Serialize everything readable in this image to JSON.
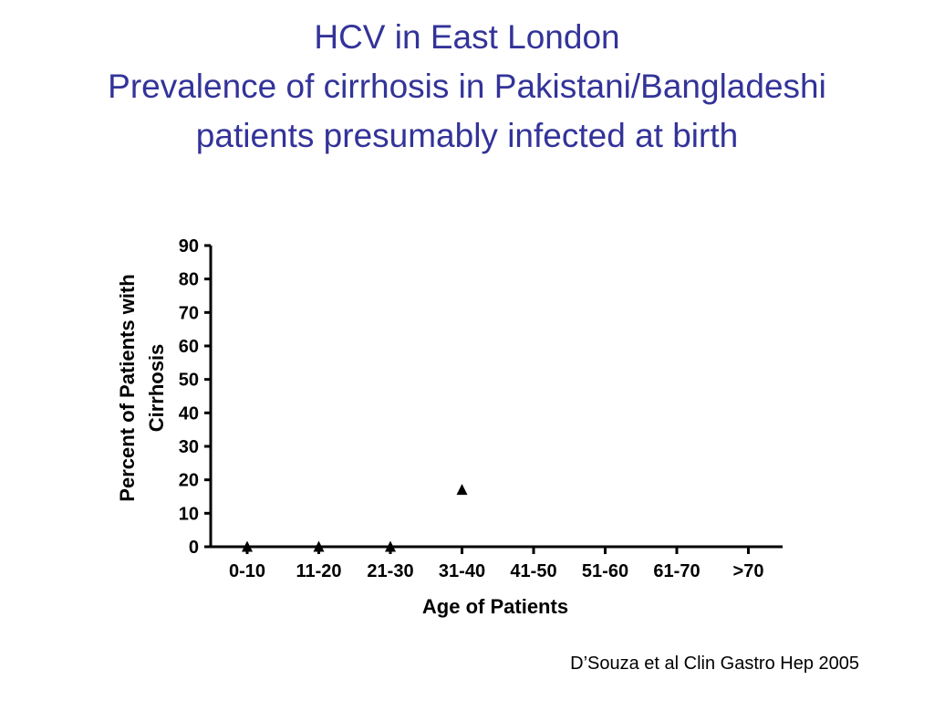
{
  "slide": {
    "title_lines": [
      "HCV in East London",
      "Prevalence of cirrhosis in Pakistani/Bangladeshi",
      "patients presumably infected at birth"
    ],
    "citation": "D’Souza et al Clin Gastro Hep 2005",
    "title_color": "#333399"
  },
  "chart_data": {
    "type": "scatter",
    "marker": "triangle",
    "marker_color": "#000000",
    "categories": [
      "0-10",
      "11-20",
      "21-30",
      "31-40",
      "41-50",
      "51-60",
      "61-70",
      ">70"
    ],
    "values": [
      0,
      0,
      0,
      17,
      null,
      null,
      null,
      null
    ],
    "yticks": [
      0,
      10,
      20,
      30,
      40,
      50,
      60,
      70,
      80,
      90
    ],
    "ylim": [
      0,
      90
    ],
    "xlabel": "Age of Patients",
    "ylabel": [
      "Percent of Patients with",
      "Cirrhosis"
    ],
    "grid": false,
    "legend": "none"
  }
}
